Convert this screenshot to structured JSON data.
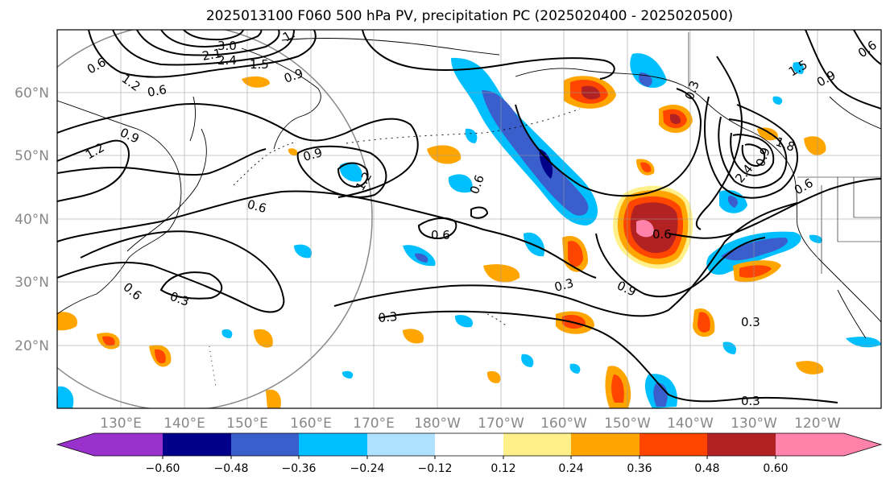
{
  "figure": {
    "title": "2025013100 F060 500 hPa PV, precipitation PC (2025020400 - 2025020500)"
  },
  "map": {
    "lat_labels": [
      "60°N",
      "50°N",
      "40°N",
      "30°N",
      "20°N"
    ],
    "lon_labels": [
      "130°E",
      "140°E",
      "150°E",
      "160°E",
      "170°E",
      "180°W",
      "170°W",
      "160°W",
      "150°W",
      "140°W",
      "130°W",
      "120°W"
    ],
    "contour_labels": [
      "0.6",
      "1.2",
      "2.1",
      "2.4",
      "3.0",
      "1.5",
      "1.",
      "0.6",
      "0.9",
      "0.9",
      "1.2",
      "0.9",
      "1.2",
      "0.6",
      "0.6",
      "0.6",
      "0.6",
      "0.3",
      "0.3",
      "0.6",
      "0.3",
      "0.9",
      "0.3",
      "0.3",
      "0.9",
      "0.6",
      "1.5",
      "0.9",
      "0.6",
      "0.3",
      "2.4",
      "1.8"
    ],
    "lat_axis_color": "#888888",
    "lon_axis_color": "#888888"
  },
  "colorbar": {
    "ticks": [
      "−0.60",
      "−0.48",
      "−0.36",
      "−0.24",
      "−0.12",
      "0.12",
      "0.24",
      "0.36",
      "0.48",
      "0.60"
    ],
    "colors": [
      "#9932cc",
      "#00008b",
      "#3a5fcd",
      "#00bfff",
      "#b0e2ff",
      "#ffffff",
      "#fff08a",
      "#ffa500",
      "#ff4500",
      "#b22222",
      "#ff82ab"
    ]
  }
}
